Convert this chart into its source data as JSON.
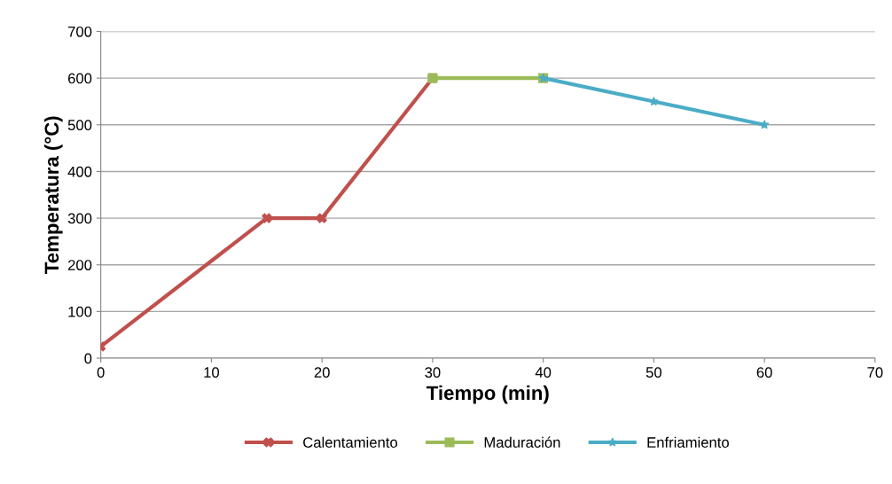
{
  "chart_data": {
    "type": "line",
    "xlabel": "Tiempo (min)",
    "ylabel": "Temperatura (°C)",
    "series": [
      {
        "name": "Calentamiento",
        "color": "#c0504d",
        "marker": "cross",
        "x": [
          0,
          15,
          20,
          30
        ],
        "values": [
          25,
          300,
          300,
          600
        ]
      },
      {
        "name": "Maduración",
        "color": "#9bbb59",
        "marker": "square",
        "x": [
          30,
          40
        ],
        "values": [
          600,
          600
        ]
      },
      {
        "name": "Enfriamiento",
        "color": "#4bacc6",
        "marker": "star",
        "x": [
          40,
          50,
          60
        ],
        "values": [
          600,
          550,
          500
        ]
      }
    ],
    "xlim": [
      0,
      70
    ],
    "xticks": [
      0,
      10,
      20,
      30,
      40,
      50,
      60,
      70
    ],
    "ylim": [
      0,
      700
    ],
    "yticks": [
      0,
      100,
      200,
      300,
      400,
      500,
      600,
      700
    ],
    "grid": "y",
    "legend": "bottom",
    "line_style": "solid"
  }
}
